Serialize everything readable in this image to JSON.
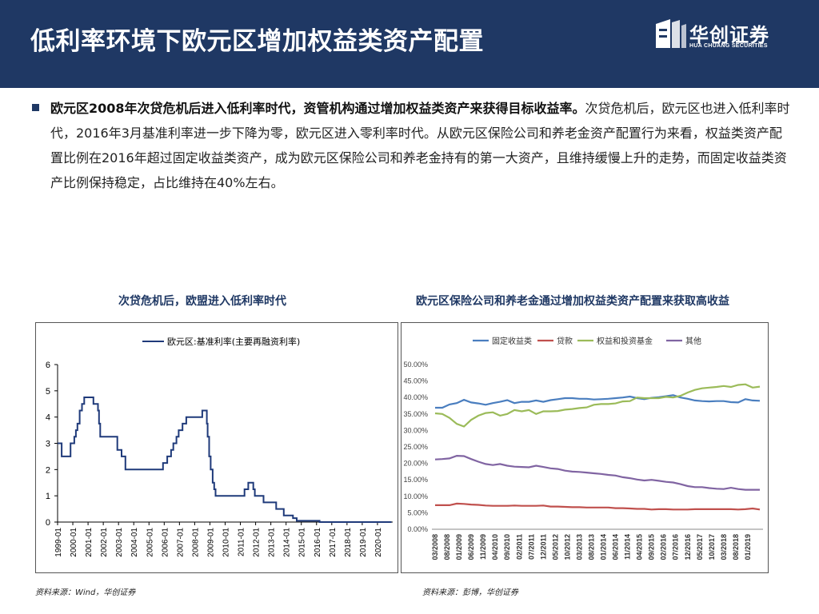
{
  "header": {
    "title": "低利率环境下欧元区增加权益类资产配置",
    "logo_cn": "华创证券",
    "logo_en": "HUA CHUANG SECURITIES",
    "bg_color": "#1f3864"
  },
  "body": {
    "bold_lead": "欧元区2008年次贷危机后进入低利率时代，资管机构通过增加权益类资产来获得目标收益率。",
    "text": "次贷危机后，欧元区也进入低利率时代，2016年3月基准利率进一步下降为零，欧元区进入零利率时代。从欧元区保险公司和养老金资产配置行为来看，权益类资产配置比例在2016年超过固定收益类资产，成为欧元区保险公司和养老金持有的第一大资产，且维持缓慢上升的走势，而固定收益类资产比例保持稳定，占比维持在40%左右。"
  },
  "left_chart": {
    "title": "次贷危机后，欧盟进入低利率时代",
    "source": "资料来源：Wind，华创证券"
  },
  "right_chart": {
    "title": "欧元区保险公司和养老金通过增加权益类资产配置来获取高收益",
    "source": "资料来源：彭博，华创证券"
  },
  "chart_data": [
    {
      "type": "line",
      "title": "次贷危机后，欧盟进入低利率时代",
      "series": [
        {
          "name": "欧元区:基准利率(主要再融资利率)",
          "color": "#1f3a7a",
          "points": [
            [
              1999.0,
              3.0
            ],
            [
              1999.27,
              3.0
            ],
            [
              1999.27,
              2.5
            ],
            [
              1999.85,
              2.5
            ],
            [
              1999.85,
              3.0
            ],
            [
              2000.1,
              3.0
            ],
            [
              2000.1,
              3.25
            ],
            [
              2000.2,
              3.25
            ],
            [
              2000.2,
              3.5
            ],
            [
              2000.3,
              3.5
            ],
            [
              2000.3,
              3.75
            ],
            [
              2000.45,
              3.75
            ],
            [
              2000.45,
              4.25
            ],
            [
              2000.6,
              4.25
            ],
            [
              2000.6,
              4.5
            ],
            [
              2000.75,
              4.5
            ],
            [
              2000.75,
              4.75
            ],
            [
              2001.35,
              4.75
            ],
            [
              2001.35,
              4.5
            ],
            [
              2001.65,
              4.5
            ],
            [
              2001.65,
              4.25
            ],
            [
              2001.72,
              4.25
            ],
            [
              2001.72,
              3.75
            ],
            [
              2001.8,
              3.75
            ],
            [
              2001.8,
              3.25
            ],
            [
              2002.92,
              3.25
            ],
            [
              2002.92,
              2.75
            ],
            [
              2003.2,
              2.75
            ],
            [
              2003.2,
              2.5
            ],
            [
              2003.45,
              2.5
            ],
            [
              2003.45,
              2.0
            ],
            [
              2005.92,
              2.0
            ],
            [
              2005.92,
              2.25
            ],
            [
              2006.2,
              2.25
            ],
            [
              2006.2,
              2.5
            ],
            [
              2006.45,
              2.5
            ],
            [
              2006.45,
              2.75
            ],
            [
              2006.6,
              2.75
            ],
            [
              2006.6,
              3.0
            ],
            [
              2006.8,
              3.0
            ],
            [
              2006.8,
              3.25
            ],
            [
              2006.95,
              3.25
            ],
            [
              2006.95,
              3.5
            ],
            [
              2007.2,
              3.5
            ],
            [
              2007.2,
              3.75
            ],
            [
              2007.45,
              3.75
            ],
            [
              2007.45,
              4.0
            ],
            [
              2008.5,
              4.0
            ],
            [
              2008.5,
              4.25
            ],
            [
              2008.8,
              4.25
            ],
            [
              2008.8,
              3.75
            ],
            [
              2008.85,
              3.75
            ],
            [
              2008.85,
              3.25
            ],
            [
              2008.95,
              3.25
            ],
            [
              2008.95,
              2.5
            ],
            [
              2009.05,
              2.5
            ],
            [
              2009.05,
              2.0
            ],
            [
              2009.18,
              2.0
            ],
            [
              2009.18,
              1.5
            ],
            [
              2009.28,
              1.5
            ],
            [
              2009.28,
              1.25
            ],
            [
              2009.37,
              1.25
            ],
            [
              2009.37,
              1.0
            ],
            [
              2011.27,
              1.0
            ],
            [
              2011.27,
              1.25
            ],
            [
              2011.52,
              1.25
            ],
            [
              2011.52,
              1.5
            ],
            [
              2011.85,
              1.5
            ],
            [
              2011.85,
              1.25
            ],
            [
              2011.95,
              1.25
            ],
            [
              2011.95,
              1.0
            ],
            [
              2012.52,
              1.0
            ],
            [
              2012.52,
              0.75
            ],
            [
              2013.35,
              0.75
            ],
            [
              2013.35,
              0.5
            ],
            [
              2013.85,
              0.5
            ],
            [
              2013.85,
              0.25
            ],
            [
              2014.45,
              0.25
            ],
            [
              2014.45,
              0.15
            ],
            [
              2014.7,
              0.15
            ],
            [
              2014.7,
              0.05
            ],
            [
              2016.2,
              0.05
            ],
            [
              2016.2,
              0.0
            ],
            [
              2020.92,
              0.0
            ]
          ]
        }
      ],
      "x_ticks": [
        "1999-01",
        "2000-01",
        "2001-01",
        "2002-01",
        "2003-01",
        "2004-01",
        "2005-01",
        "2006-01",
        "2007-01",
        "2008-01",
        "2009-01",
        "2010-01",
        "2011-01",
        "2012-01",
        "2013-01",
        "2014-01",
        "2015-01",
        "2016-01",
        "2017-01",
        "2018-01",
        "2019-01",
        "2020-01"
      ],
      "xlim": [
        1999.0,
        2021.0
      ],
      "ylim": [
        0,
        6
      ],
      "y_ticks": [
        "0",
        "1",
        "2",
        "3",
        "4",
        "5",
        "6"
      ],
      "legend": "top-left"
    },
    {
      "type": "line",
      "title": "欧元区保险公司和养老金通过增加权益类资产配置来获取高收益",
      "categories": [
        "03/2008",
        "06/2008",
        "09/2008",
        "12/2008",
        "03/2009",
        "06/2009",
        "09/2009",
        "12/2009",
        "03/2010",
        "06/2010",
        "09/2010",
        "12/2010",
        "03/2011",
        "06/2011",
        "09/2011",
        "12/2011",
        "03/2012",
        "06/2012",
        "09/2012",
        "12/2012",
        "03/2013",
        "06/2013",
        "09/2013",
        "12/2013",
        "03/2014",
        "06/2014",
        "09/2014",
        "12/2014",
        "03/2015",
        "06/2015",
        "09/2015",
        "12/2015",
        "03/2016",
        "06/2016",
        "09/2016",
        "12/2016",
        "03/2017",
        "06/2017",
        "09/2017",
        "12/2017",
        "03/2018",
        "06/2018",
        "09/2018",
        "12/2018",
        "03/2019",
        "06/2019"
      ],
      "x_tick_labels": [
        "03/2008",
        "08/2008",
        "01/2009",
        "06/2009",
        "11/2009",
        "04/2010",
        "09/2010",
        "02/2011",
        "07/2011",
        "12/2011",
        "05/2012",
        "10/2012",
        "03/2013",
        "08/2013",
        "01/2014",
        "06/2014",
        "11/2014",
        "04/2015",
        "09/2015",
        "02/2016",
        "07/2016",
        "12/2016",
        "05/2017",
        "10/2017",
        "03/2018",
        "08/2018",
        "01/2019"
      ],
      "series": [
        {
          "name": "固定收益类",
          "color": "#4a7ebf",
          "values": [
            36.9,
            36.9,
            37.9,
            38.3,
            39.3,
            38.5,
            38.2,
            37.8,
            38.3,
            38.7,
            39.2,
            38.3,
            38.7,
            38.7,
            39.1,
            38.7,
            39.2,
            39.5,
            39.8,
            39.8,
            39.6,
            39.6,
            39.4,
            39.5,
            39.6,
            39.8,
            40.0,
            40.3,
            39.8,
            39.5,
            39.9,
            40.1,
            40.4,
            40.7,
            40.0,
            39.6,
            39.1,
            38.9,
            38.8,
            38.9,
            38.9,
            38.6,
            38.5,
            39.5,
            39.1,
            39.0
          ]
        },
        {
          "name": "贷款",
          "color": "#c0504d",
          "values": [
            7.3,
            7.3,
            7.3,
            7.8,
            7.7,
            7.5,
            7.4,
            7.2,
            7.1,
            7.1,
            7.1,
            7.2,
            7.1,
            7.1,
            7.1,
            7.2,
            6.9,
            6.9,
            6.8,
            6.7,
            6.7,
            6.6,
            6.6,
            6.6,
            6.6,
            6.4,
            6.4,
            6.3,
            6.2,
            6.2,
            6.0,
            6.1,
            6.1,
            6.0,
            6.0,
            6.0,
            6.1,
            6.1,
            6.1,
            6.1,
            6.1,
            6.1,
            6.0,
            6.1,
            6.3,
            6.0
          ]
        },
        {
          "name": "权益和投资基金",
          "color": "#9bbb59",
          "values": [
            35.2,
            35.0,
            33.8,
            32.0,
            31.2,
            33.2,
            34.5,
            35.3,
            35.5,
            34.5,
            35.0,
            36.2,
            35.8,
            36.2,
            35.0,
            35.8,
            35.8,
            35.9,
            36.3,
            36.5,
            36.8,
            37.0,
            37.8,
            38.0,
            38.0,
            38.2,
            38.8,
            38.9,
            40.0,
            39.8,
            39.8,
            39.8,
            40.2,
            40.0,
            40.5,
            41.5,
            42.3,
            42.8,
            43.0,
            43.2,
            43.5,
            43.2,
            43.8,
            44.0,
            43.0,
            43.3
          ]
        },
        {
          "name": "其他",
          "color": "#8064a2",
          "values": [
            21.2,
            21.3,
            21.5,
            22.3,
            22.2,
            21.3,
            20.5,
            19.8,
            19.5,
            19.8,
            19.3,
            19.0,
            18.9,
            18.8,
            19.3,
            18.9,
            18.5,
            18.3,
            17.8,
            17.5,
            17.4,
            17.2,
            17.0,
            16.8,
            16.5,
            16.3,
            15.8,
            15.5,
            15.1,
            14.8,
            15.0,
            14.7,
            14.4,
            14.2,
            13.7,
            13.1,
            12.8,
            12.8,
            12.5,
            12.3,
            12.2,
            12.6,
            12.2,
            12.0,
            12.0,
            12.0
          ]
        }
      ],
      "ylim": [
        0,
        50
      ],
      "y_ticks": [
        "0.00%",
        "5.00%",
        "10.00%",
        "15.00%",
        "20.00%",
        "25.00%",
        "30.00%",
        "35.00%",
        "40.00%",
        "45.00%",
        "50.00%"
      ],
      "legend": "top"
    }
  ]
}
